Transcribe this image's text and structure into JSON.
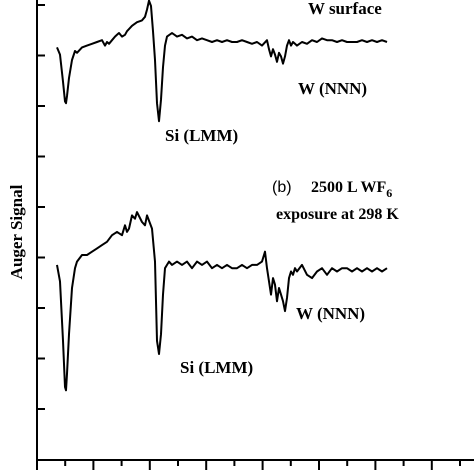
{
  "chart_data": {
    "type": "line",
    "ylabel": "Auger Signal",
    "xlabel": "",
    "title": "",
    "grid": false,
    "series": [
      {
        "name": "W surface",
        "x": [
          0,
          3,
          6,
          8,
          9,
          10,
          12,
          15,
          18,
          20,
          25,
          30,
          35,
          40,
          45,
          48,
          50,
          52,
          55,
          58,
          60,
          62,
          65,
          68,
          70,
          75,
          80,
          85,
          88,
          90,
          92,
          94,
          96,
          98,
          100,
          102,
          104,
          106,
          108,
          110,
          115,
          120,
          125,
          130,
          135,
          140,
          145,
          150,
          155,
          160,
          165,
          170,
          175,
          180,
          185,
          190,
          195,
          200,
          205,
          210,
          212,
          214,
          216,
          218,
          220,
          222,
          224,
          226,
          228,
          230,
          232,
          234,
          236,
          238,
          240,
          245,
          250,
          255,
          260,
          265,
          270,
          275,
          280,
          285,
          290,
          295,
          300,
          305,
          310,
          315,
          320,
          325,
          330
        ],
        "y": [
          0.55,
          0.35,
          -0.4,
          -0.95,
          -1.0,
          -0.8,
          -0.3,
          0.2,
          0.45,
          0.4,
          0.55,
          0.6,
          0.65,
          0.7,
          0.75,
          0.6,
          0.7,
          0.65,
          0.75,
          0.85,
          0.9,
          0.95,
          0.85,
          0.9,
          1.0,
          1.15,
          1.25,
          1.3,
          1.4,
          1.6,
          1.85,
          1.7,
          1.0,
          0.2,
          -1.0,
          -1.5,
          -0.9,
          0.0,
          0.6,
          0.85,
          0.95,
          0.85,
          0.9,
          0.8,
          0.85,
          0.75,
          0.8,
          0.75,
          0.7,
          0.75,
          0.7,
          0.75,
          0.7,
          0.7,
          0.75,
          0.7,
          0.65,
          0.7,
          0.6,
          0.75,
          0.5,
          0.3,
          0.5,
          0.35,
          0.15,
          0.4,
          0.3,
          0.1,
          0.3,
          0.6,
          0.75,
          0.6,
          0.7,
          0.65,
          0.6,
          0.7,
          0.65,
          0.75,
          0.7,
          0.8,
          0.75,
          0.75,
          0.7,
          0.75,
          0.7,
          0.7,
          0.7,
          0.75,
          0.7,
          0.75,
          0.7,
          0.75,
          0.7
        ]
      },
      {
        "name": "(b) 2500 L WF6 exposure at 298 K",
        "x": [
          0,
          3,
          6,
          8,
          9,
          10,
          12,
          15,
          18,
          20,
          25,
          30,
          35,
          40,
          45,
          50,
          55,
          60,
          65,
          68,
          70,
          72,
          75,
          78,
          80,
          85,
          88,
          90,
          95,
          98,
          100,
          102,
          104,
          106,
          108,
          110,
          112,
          115,
          120,
          125,
          130,
          135,
          140,
          145,
          150,
          155,
          160,
          165,
          170,
          175,
          180,
          185,
          190,
          195,
          200,
          205,
          208,
          210,
          212,
          214,
          216,
          218,
          220,
          222,
          224,
          226,
          228,
          230,
          232,
          234,
          236,
          238,
          240,
          245,
          250,
          255,
          260,
          265,
          270,
          275,
          280,
          285,
          290,
          295,
          300,
          305,
          310,
          315,
          320,
          325,
          330
        ],
        "y": [
          0.55,
          0.3,
          -0.6,
          -1.3,
          -1.35,
          -1.1,
          -0.5,
          0.2,
          0.5,
          0.6,
          0.7,
          0.7,
          0.75,
          0.8,
          0.85,
          0.9,
          1.0,
          1.05,
          1.0,
          1.15,
          1.05,
          1.1,
          1.3,
          1.25,
          1.35,
          1.2,
          1.15,
          1.3,
          1.1,
          0.6,
          -0.6,
          -0.8,
          -0.5,
          0.1,
          0.5,
          0.55,
          0.6,
          0.55,
          0.6,
          0.55,
          0.6,
          0.5,
          0.6,
          0.55,
          0.6,
          0.5,
          0.55,
          0.5,
          0.55,
          0.5,
          0.5,
          0.55,
          0.5,
          0.55,
          0.55,
          0.6,
          0.75,
          0.5,
          0.3,
          0.1,
          0.35,
          0.25,
          0.0,
          0.2,
          0.1,
          0.0,
          -0.15,
          0.05,
          0.35,
          0.45,
          0.4,
          0.5,
          0.45,
          0.55,
          0.4,
          0.35,
          0.45,
          0.5,
          0.4,
          0.5,
          0.45,
          0.5,
          0.5,
          0.45,
          0.5,
          0.45,
          0.5,
          0.45,
          0.5,
          0.45,
          0.5
        ]
      }
    ],
    "annotations": {
      "top_title": "W surface",
      "top_peak_w": "W (NNN)",
      "top_peak_si": "Si (LMM)",
      "b_prefix": "(b)",
      "b_line1": "2500 L WF",
      "b_line1_sub": "6",
      "b_line2": "exposure at 298 K",
      "bottom_peak_w": "W (NNN)",
      "bottom_peak_si": "Si (LMM)"
    }
  }
}
